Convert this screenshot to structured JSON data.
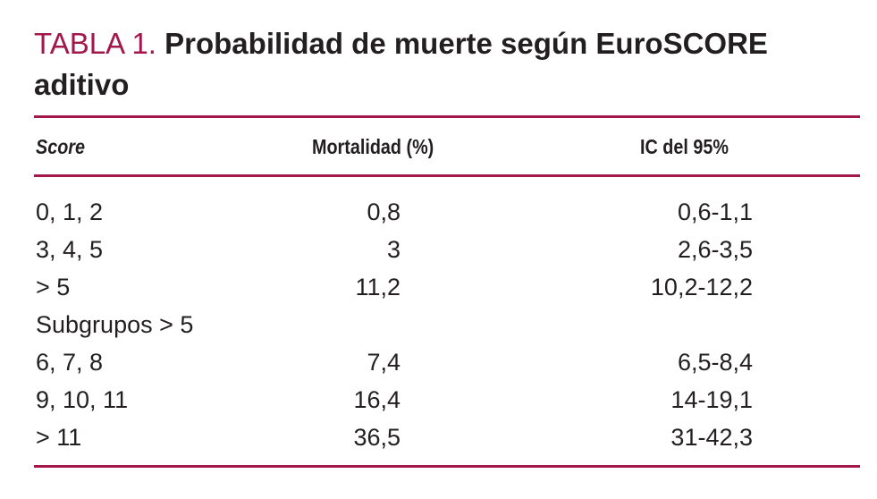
{
  "title": {
    "label": "TABLA 1.",
    "text": "Probabilidad de muerte según EuroSCORE aditivo"
  },
  "colors": {
    "accent": "#a3174b",
    "text": "#231f20"
  },
  "headers": {
    "score": "Score",
    "mortality": "Mortalidad (%)",
    "ci": "IC del 95%"
  },
  "rows": [
    {
      "score": "0, 1, 2",
      "mortality": "0,8",
      "ci": "0,6-1,1"
    },
    {
      "score": "3, 4, 5",
      "mortality": "3",
      "ci": "2,6-3,5"
    },
    {
      "score": "> 5",
      "mortality": "11,2",
      "ci": "10,2-12,2"
    },
    {
      "score": "Subgrupos > 5",
      "mortality": "",
      "ci": ""
    },
    {
      "score": "6, 7, 8",
      "mortality": "7,4",
      "ci": "6,5-8,4"
    },
    {
      "score": "9, 10, 11",
      "mortality": "16,4",
      "ci": "14-19,1"
    },
    {
      "score": "> 11",
      "mortality": "36,5",
      "ci": "31-42,3"
    }
  ]
}
